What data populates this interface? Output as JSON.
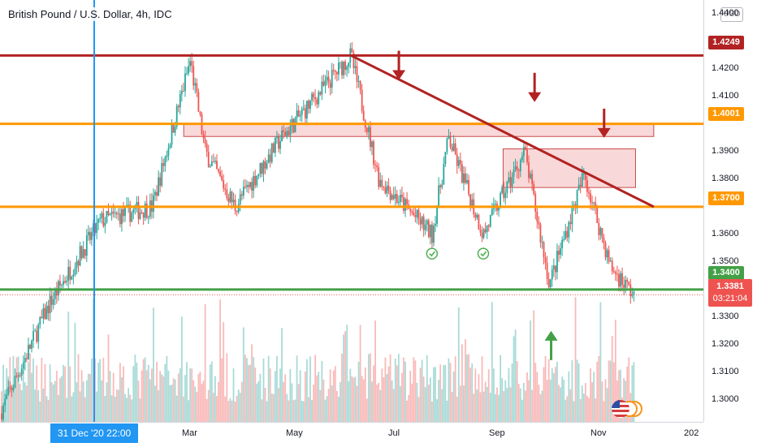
{
  "title": "British Pound / U.S. Dollar, 4h, IDC",
  "currency": "USD",
  "colors": {
    "resistance": "#b22222",
    "level": "#ff9800",
    "support": "#43a047",
    "bull": "#26a69a",
    "bear": "#ef5350",
    "cursor": "#2196f3"
  },
  "price_axis": {
    "ticks": [
      "1.4400",
      "1.4300",
      "1.4200",
      "1.4100",
      "1.3900",
      "1.3800",
      "1.3600",
      "1.3500",
      "1.3300",
      "1.3200",
      "1.3100",
      "1.3000"
    ]
  },
  "price_tags": {
    "resistance": "1.4249",
    "level_upper": "1.4001",
    "level_lower": "1.3700",
    "support": "1.3400"
  },
  "current": {
    "price": "1.3381",
    "countdown": "03:21:04"
  },
  "time_axis": {
    "ticks": [
      "Mar",
      "May",
      "Jul",
      "Sep",
      "Nov",
      "202"
    ],
    "crosshair_label": "31 Dec '20   22:00"
  },
  "chart_data": {
    "type": "candlestick",
    "title": "British Pound / U.S. Dollar, 4h, IDC",
    "instrument": "GBP/USD",
    "timeframe": "4h",
    "ylim": [
      1.292,
      1.445
    ],
    "x_range": [
      "2020-11-01",
      "2021-12-31"
    ],
    "horizontal_levels": [
      {
        "price": 1.4249,
        "label": "1.4249",
        "color": "#b22222"
      },
      {
        "price": 1.4001,
        "label": "1.4001",
        "color": "#ff9800"
      },
      {
        "price": 1.37,
        "label": "1.3700",
        "color": "#ff9800"
      },
      {
        "price": 1.34,
        "label": "1.3400",
        "color": "#43a047"
      }
    ],
    "trendline": {
      "from": {
        "date": "2021-06-01",
        "price": 1.4249
      },
      "to": {
        "date": "2021-12-01",
        "price": 1.37
      }
    },
    "zones": [
      {
        "from": "2021-02-20",
        "to": "2021-12-01",
        "top": 1.4001,
        "bottom": 1.3955
      },
      {
        "from": "2021-09-01",
        "to": "2021-11-20",
        "top": 1.391,
        "bottom": 1.377
      }
    ],
    "current_price": 1.3381,
    "approx_path": [
      {
        "date": "2020-11-01",
        "close": 1.295
      },
      {
        "date": "2020-12-01",
        "close": 1.335
      },
      {
        "date": "2021-01-01",
        "close": 1.365
      },
      {
        "date": "2021-02-01",
        "close": 1.37
      },
      {
        "date": "2021-02-24",
        "close": 1.423
      },
      {
        "date": "2021-03-05",
        "close": 1.39
      },
      {
        "date": "2021-03-23",
        "close": 1.37
      },
      {
        "date": "2021-04-20",
        "close": 1.395
      },
      {
        "date": "2021-06-01",
        "close": 1.4249
      },
      {
        "date": "2021-06-18",
        "close": 1.38
      },
      {
        "date": "2021-07-20",
        "close": 1.36
      },
      {
        "date": "2021-07-30",
        "close": 1.395
      },
      {
        "date": "2021-08-20",
        "close": 1.36
      },
      {
        "date": "2021-09-14",
        "close": 1.39
      },
      {
        "date": "2021-09-29",
        "close": 1.342
      },
      {
        "date": "2021-10-20",
        "close": 1.382
      },
      {
        "date": "2021-11-05",
        "close": 1.348
      },
      {
        "date": "2021-11-19",
        "close": 1.3381
      }
    ],
    "markers": [
      {
        "type": "down-arrow",
        "date": "2021-06-30",
        "price": 1.416
      },
      {
        "type": "down-arrow",
        "date": "2021-09-20",
        "price": 1.408
      },
      {
        "type": "down-arrow",
        "date": "2021-11-01",
        "price": 1.395
      },
      {
        "type": "up-arrow",
        "date": "2021-09-30",
        "price": 1.325
      },
      {
        "type": "check-icon",
        "date": "2021-07-20",
        "price": 1.353
      },
      {
        "type": "check-icon",
        "date": "2021-08-20",
        "price": 1.353
      }
    ]
  }
}
